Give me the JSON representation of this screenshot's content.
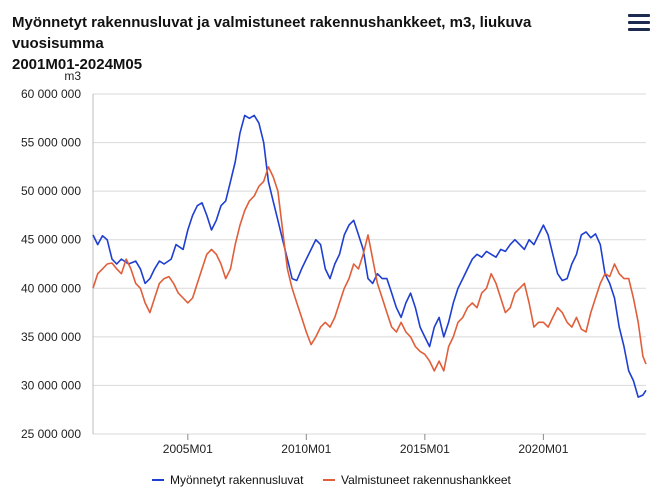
{
  "header": {
    "title_line1": "Myönnetyt rakennusluvat ja valmistuneet rakennushankkeet, m3, liukuva vuosisumma",
    "title_line2": "2001M01-2024M05",
    "menu_icon": "hamburger-menu-icon"
  },
  "chart_data": {
    "type": "line",
    "title": "Myönnetyt rakennusluvat ja valmistuneet rakennushankkeet, m3, liukuva vuosisumma",
    "subtitle": "2001M01-2024M05",
    "ylabel": "m3",
    "xlabel": "",
    "x_range": [
      2001.0,
      2024.33
    ],
    "ylim": [
      25000000,
      60000000
    ],
    "y_ticks": [
      25000000,
      30000000,
      35000000,
      40000000,
      45000000,
      50000000,
      55000000,
      60000000
    ],
    "y_tick_labels": [
      "25 000 000",
      "30 000 000",
      "35 000 000",
      "40 000 000",
      "45 000 000",
      "50 000 000",
      "55 000 000",
      "60 000 000"
    ],
    "x_ticks": [
      2005.0,
      2010.0,
      2015.0,
      2020.0
    ],
    "x_tick_labels": [
      "2005M01",
      "2010M01",
      "2015M01",
      "2020M01"
    ],
    "grid": "horizontal",
    "legend_position": "bottom",
    "series": [
      {
        "name": "Myönnetyt rakennusluvat",
        "color": "#1f3fd1",
        "points": [
          [
            2001.0,
            45500000
          ],
          [
            2001.2,
            44500000
          ],
          [
            2001.4,
            45400000
          ],
          [
            2001.6,
            45000000
          ],
          [
            2001.8,
            43000000
          ],
          [
            2002.0,
            42500000
          ],
          [
            2002.2,
            43000000
          ],
          [
            2002.5,
            42500000
          ],
          [
            2002.8,
            42800000
          ],
          [
            2003.0,
            42000000
          ],
          [
            2003.2,
            40500000
          ],
          [
            2003.4,
            41000000
          ],
          [
            2003.6,
            42000000
          ],
          [
            2003.8,
            42800000
          ],
          [
            2004.0,
            42500000
          ],
          [
            2004.3,
            43000000
          ],
          [
            2004.5,
            44500000
          ],
          [
            2004.8,
            44000000
          ],
          [
            2005.0,
            46000000
          ],
          [
            2005.2,
            47500000
          ],
          [
            2005.4,
            48500000
          ],
          [
            2005.6,
            48800000
          ],
          [
            2005.8,
            47500000
          ],
          [
            2006.0,
            46000000
          ],
          [
            2006.2,
            47000000
          ],
          [
            2006.4,
            48500000
          ],
          [
            2006.6,
            49000000
          ],
          [
            2006.8,
            51000000
          ],
          [
            2007.0,
            53000000
          ],
          [
            2007.2,
            56000000
          ],
          [
            2007.4,
            57800000
          ],
          [
            2007.6,
            57500000
          ],
          [
            2007.8,
            57800000
          ],
          [
            2008.0,
            57000000
          ],
          [
            2008.2,
            55000000
          ],
          [
            2008.4,
            51000000
          ],
          [
            2008.6,
            49000000
          ],
          [
            2008.8,
            47000000
          ],
          [
            2009.0,
            45000000
          ],
          [
            2009.2,
            43000000
          ],
          [
            2009.4,
            41000000
          ],
          [
            2009.6,
            40800000
          ],
          [
            2009.8,
            42000000
          ],
          [
            2010.0,
            43000000
          ],
          [
            2010.2,
            44000000
          ],
          [
            2010.4,
            45000000
          ],
          [
            2010.6,
            44500000
          ],
          [
            2010.8,
            42000000
          ],
          [
            2011.0,
            41000000
          ],
          [
            2011.2,
            42500000
          ],
          [
            2011.4,
            43500000
          ],
          [
            2011.6,
            45500000
          ],
          [
            2011.8,
            46500000
          ],
          [
            2012.0,
            47000000
          ],
          [
            2012.2,
            45500000
          ],
          [
            2012.4,
            44000000
          ],
          [
            2012.6,
            41000000
          ],
          [
            2012.8,
            40500000
          ],
          [
            2013.0,
            41500000
          ],
          [
            2013.2,
            41000000
          ],
          [
            2013.4,
            41000000
          ],
          [
            2013.6,
            39500000
          ],
          [
            2013.8,
            38000000
          ],
          [
            2014.0,
            37000000
          ],
          [
            2014.2,
            38500000
          ],
          [
            2014.4,
            39500000
          ],
          [
            2014.6,
            38000000
          ],
          [
            2014.8,
            36000000
          ],
          [
            2015.0,
            35000000
          ],
          [
            2015.2,
            34000000
          ],
          [
            2015.4,
            36000000
          ],
          [
            2015.6,
            37000000
          ],
          [
            2015.8,
            35000000
          ],
          [
            2016.0,
            36500000
          ],
          [
            2016.2,
            38500000
          ],
          [
            2016.4,
            40000000
          ],
          [
            2016.6,
            41000000
          ],
          [
            2016.8,
            42000000
          ],
          [
            2017.0,
            43000000
          ],
          [
            2017.2,
            43500000
          ],
          [
            2017.4,
            43200000
          ],
          [
            2017.6,
            43800000
          ],
          [
            2017.8,
            43500000
          ],
          [
            2018.0,
            43200000
          ],
          [
            2018.2,
            44000000
          ],
          [
            2018.4,
            43800000
          ],
          [
            2018.6,
            44500000
          ],
          [
            2018.8,
            45000000
          ],
          [
            2019.0,
            44500000
          ],
          [
            2019.2,
            44000000
          ],
          [
            2019.4,
            45000000
          ],
          [
            2019.6,
            44500000
          ],
          [
            2019.8,
            45500000
          ],
          [
            2020.0,
            46500000
          ],
          [
            2020.2,
            45500000
          ],
          [
            2020.4,
            43500000
          ],
          [
            2020.6,
            41500000
          ],
          [
            2020.8,
            40800000
          ],
          [
            2021.0,
            41000000
          ],
          [
            2021.2,
            42500000
          ],
          [
            2021.4,
            43500000
          ],
          [
            2021.6,
            45500000
          ],
          [
            2021.8,
            45800000
          ],
          [
            2022.0,
            45200000
          ],
          [
            2022.2,
            45600000
          ],
          [
            2022.4,
            44500000
          ],
          [
            2022.6,
            41500000
          ],
          [
            2022.8,
            40500000
          ],
          [
            2023.0,
            39000000
          ],
          [
            2023.2,
            36000000
          ],
          [
            2023.4,
            34000000
          ],
          [
            2023.6,
            31500000
          ],
          [
            2023.8,
            30500000
          ],
          [
            2024.0,
            28800000
          ],
          [
            2024.2,
            29000000
          ],
          [
            2024.33,
            29500000
          ]
        ]
      },
      {
        "name": "Valmistuneet rakennushankkeet",
        "color": "#e05f3a",
        "points": [
          [
            2001.0,
            40000000
          ],
          [
            2001.2,
            41500000
          ],
          [
            2001.4,
            42000000
          ],
          [
            2001.6,
            42500000
          ],
          [
            2001.8,
            42600000
          ],
          [
            2002.0,
            42000000
          ],
          [
            2002.2,
            41500000
          ],
          [
            2002.4,
            43000000
          ],
          [
            2002.6,
            42000000
          ],
          [
            2002.8,
            40500000
          ],
          [
            2003.0,
            40000000
          ],
          [
            2003.2,
            38500000
          ],
          [
            2003.4,
            37500000
          ],
          [
            2003.6,
            39000000
          ],
          [
            2003.8,
            40500000
          ],
          [
            2004.0,
            41000000
          ],
          [
            2004.2,
            41200000
          ],
          [
            2004.4,
            40500000
          ],
          [
            2004.6,
            39500000
          ],
          [
            2004.8,
            39000000
          ],
          [
            2005.0,
            38500000
          ],
          [
            2005.2,
            39000000
          ],
          [
            2005.4,
            40500000
          ],
          [
            2005.6,
            42000000
          ],
          [
            2005.8,
            43500000
          ],
          [
            2006.0,
            44000000
          ],
          [
            2006.2,
            43500000
          ],
          [
            2006.4,
            42500000
          ],
          [
            2006.6,
            41000000
          ],
          [
            2006.8,
            42000000
          ],
          [
            2007.0,
            44500000
          ],
          [
            2007.2,
            46500000
          ],
          [
            2007.4,
            48000000
          ],
          [
            2007.6,
            49000000
          ],
          [
            2007.8,
            49500000
          ],
          [
            2008.0,
            50500000
          ],
          [
            2008.2,
            51000000
          ],
          [
            2008.4,
            52500000
          ],
          [
            2008.6,
            51500000
          ],
          [
            2008.8,
            50000000
          ],
          [
            2009.0,
            46000000
          ],
          [
            2009.2,
            42000000
          ],
          [
            2009.4,
            40000000
          ],
          [
            2009.6,
            38500000
          ],
          [
            2009.8,
            37000000
          ],
          [
            2010.0,
            35500000
          ],
          [
            2010.2,
            34200000
          ],
          [
            2010.4,
            35000000
          ],
          [
            2010.6,
            36000000
          ],
          [
            2010.8,
            36500000
          ],
          [
            2011.0,
            36000000
          ],
          [
            2011.2,
            37000000
          ],
          [
            2011.4,
            38500000
          ],
          [
            2011.6,
            40000000
          ],
          [
            2011.8,
            41000000
          ],
          [
            2012.0,
            42500000
          ],
          [
            2012.2,
            42000000
          ],
          [
            2012.4,
            43500000
          ],
          [
            2012.6,
            45500000
          ],
          [
            2012.8,
            43000000
          ],
          [
            2013.0,
            40500000
          ],
          [
            2013.2,
            39000000
          ],
          [
            2013.4,
            37500000
          ],
          [
            2013.6,
            36000000
          ],
          [
            2013.8,
            35500000
          ],
          [
            2014.0,
            36500000
          ],
          [
            2014.2,
            35500000
          ],
          [
            2014.4,
            35000000
          ],
          [
            2014.6,
            34000000
          ],
          [
            2014.8,
            33500000
          ],
          [
            2015.0,
            33200000
          ],
          [
            2015.2,
            32500000
          ],
          [
            2015.4,
            31500000
          ],
          [
            2015.6,
            32500000
          ],
          [
            2015.8,
            31500000
          ],
          [
            2016.0,
            34000000
          ],
          [
            2016.2,
            35000000
          ],
          [
            2016.4,
            36500000
          ],
          [
            2016.6,
            37000000
          ],
          [
            2016.8,
            38000000
          ],
          [
            2017.0,
            38500000
          ],
          [
            2017.2,
            38000000
          ],
          [
            2017.4,
            39500000
          ],
          [
            2017.6,
            40000000
          ],
          [
            2017.8,
            41500000
          ],
          [
            2018.0,
            40500000
          ],
          [
            2018.2,
            39000000
          ],
          [
            2018.4,
            37500000
          ],
          [
            2018.6,
            38000000
          ],
          [
            2018.8,
            39500000
          ],
          [
            2019.0,
            40000000
          ],
          [
            2019.2,
            40500000
          ],
          [
            2019.4,
            38500000
          ],
          [
            2019.6,
            36000000
          ],
          [
            2019.8,
            36500000
          ],
          [
            2020.0,
            36500000
          ],
          [
            2020.2,
            36000000
          ],
          [
            2020.4,
            37000000
          ],
          [
            2020.6,
            38000000
          ],
          [
            2020.8,
            37500000
          ],
          [
            2021.0,
            36500000
          ],
          [
            2021.2,
            36000000
          ],
          [
            2021.4,
            37000000
          ],
          [
            2021.6,
            35800000
          ],
          [
            2021.8,
            35500000
          ],
          [
            2022.0,
            37500000
          ],
          [
            2022.2,
            39000000
          ],
          [
            2022.4,
            40500000
          ],
          [
            2022.6,
            41500000
          ],
          [
            2022.8,
            41200000
          ],
          [
            2023.0,
            42500000
          ],
          [
            2023.2,
            41500000
          ],
          [
            2023.4,
            41000000
          ],
          [
            2023.6,
            41000000
          ],
          [
            2023.8,
            39000000
          ],
          [
            2024.0,
            36500000
          ],
          [
            2024.2,
            33000000
          ],
          [
            2024.33,
            32200000
          ]
        ]
      }
    ]
  }
}
